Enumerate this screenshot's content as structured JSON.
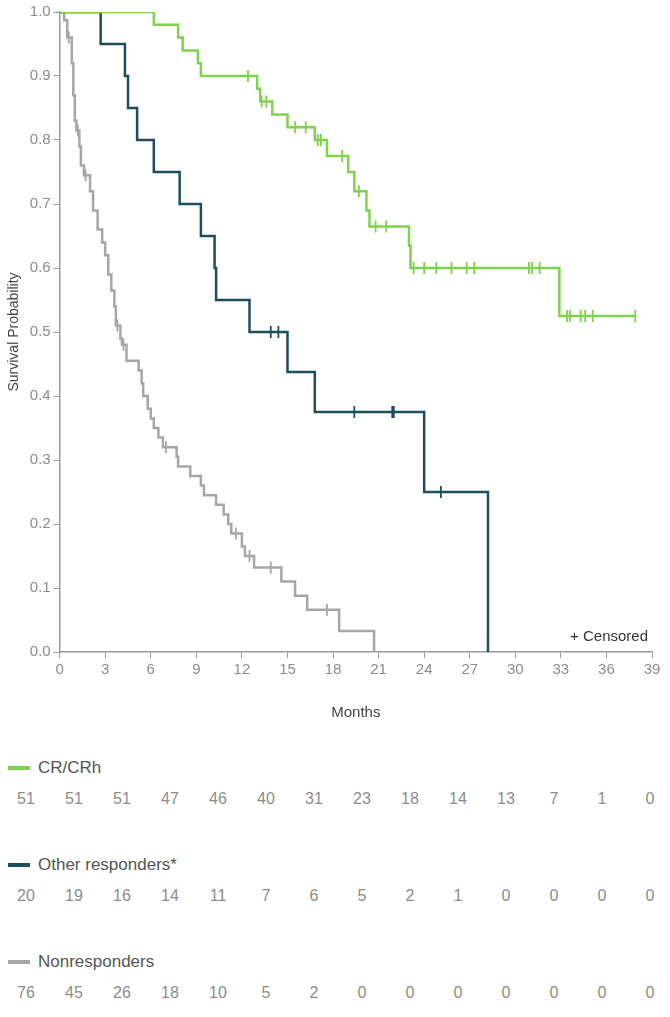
{
  "chart_data": {
    "type": "line",
    "line_style": "step",
    "x_label": "Months",
    "y_label": "Survival Probability",
    "annotation": "+ Censored",
    "xlim": [
      0,
      39
    ],
    "xticks": [
      0,
      3,
      6,
      9,
      12,
      15,
      18,
      21,
      24,
      27,
      30,
      33,
      36,
      39
    ],
    "ylim": [
      0,
      1
    ],
    "yticks": [
      {
        "value": 0,
        "label": "0.0"
      },
      0.1,
      0.2,
      0.3,
      0.4,
      0.5,
      0.6,
      0.7,
      0.8,
      0.9,
      {
        "value": 1,
        "label": "1.0"
      }
    ],
    "grid": false,
    "series": [
      {
        "name": "CR/CRh",
        "color": "#80d24d",
        "x": [
          0,
          6.2,
          7.8,
          8.1,
          9.1,
          9.3,
          13.0,
          13.2,
          14.0,
          15.0,
          16.8,
          17.6,
          19.0,
          19.4,
          20.2,
          20.4,
          23.0,
          23.1,
          32.9,
          37.9
        ],
        "y": [
          1,
          0.98,
          0.96,
          0.94,
          0.92,
          0.9,
          0.88,
          0.86,
          0.84,
          0.82,
          0.8,
          0.775,
          0.75,
          0.72,
          0.69,
          0.665,
          0.635,
          0.6,
          0.525,
          0.525
        ],
        "censored_x": [
          12.4,
          13.3,
          13.6,
          15.5,
          16.2,
          17.0,
          17.2,
          18.6,
          19.7,
          20.8,
          21.5,
          23.3,
          24.0,
          24.8,
          25.8,
          26.8,
          27.3,
          30.9,
          31.1,
          31.6,
          33.4,
          33.6,
          34.3,
          34.6,
          35.1,
          37.9
        ],
        "censored_y": [
          0.9,
          0.86,
          0.86,
          0.82,
          0.82,
          0.8,
          0.8,
          0.775,
          0.72,
          0.665,
          0.665,
          0.6,
          0.6,
          0.6,
          0.6,
          0.6,
          0.6,
          0.6,
          0.6,
          0.6,
          0.525,
          0.525,
          0.525,
          0.525,
          0.525,
          0.525
        ],
        "at_risk": [
          51,
          51,
          51,
          47,
          46,
          40,
          31,
          23,
          18,
          14,
          13,
          7,
          1,
          0
        ]
      },
      {
        "name": "Other responders*",
        "color": "#1d4e5b",
        "x": [
          0,
          2.7,
          4.3,
          4.5,
          5.1,
          6.2,
          7.9,
          9.3,
          10.2,
          10.3,
          12.5,
          15.0,
          16.8,
          24.0,
          28.2
        ],
        "y": [
          1,
          0.95,
          0.9,
          0.85,
          0.8,
          0.75,
          0.7,
          0.65,
          0.6,
          0.55,
          0.5,
          0.4375,
          0.375,
          0.25,
          0
        ],
        "censored_x": [
          13.9,
          14.4,
          19.4,
          21.9,
          22.0,
          25.1
        ],
        "censored_y": [
          0.5,
          0.5,
          0.375,
          0.375,
          0.375,
          0.25
        ],
        "at_risk": [
          20,
          19,
          16,
          14,
          11,
          7,
          6,
          5,
          2,
          1,
          0,
          0,
          0,
          0
        ]
      },
      {
        "name": "Nonresponders",
        "color": "#a6a6a6",
        "x": [
          0,
          0.3,
          0.5,
          0.8,
          0.9,
          1.0,
          1.1,
          1.3,
          1.4,
          1.6,
          2.0,
          2.2,
          2.5,
          2.8,
          3.0,
          3.2,
          3.4,
          3.6,
          3.7,
          4.0,
          4.1,
          4.4,
          5.2,
          5.4,
          5.5,
          5.8,
          6.0,
          6.2,
          6.5,
          6.8,
          7.7,
          7.8,
          8.6,
          9.3,
          9.5,
          10.3,
          10.8,
          11.1,
          11.3,
          12.0,
          12.2,
          12.8,
          14.6,
          15.5,
          16.3,
          18.4,
          20.7
        ],
        "y": [
          1,
          0.987,
          0.96,
          0.92,
          0.87,
          0.83,
          0.815,
          0.79,
          0.76,
          0.745,
          0.72,
          0.69,
          0.66,
          0.64,
          0.62,
          0.59,
          0.565,
          0.54,
          0.51,
          0.49,
          0.48,
          0.455,
          0.44,
          0.42,
          0.4,
          0.38,
          0.365,
          0.35,
          0.335,
          0.32,
          0.305,
          0.29,
          0.275,
          0.26,
          0.245,
          0.23,
          0.215,
          0.2,
          0.185,
          0.165,
          0.15,
          0.132,
          0.11,
          0.088,
          0.066,
          0.033,
          0
        ],
        "censored_x": [
          0.6,
          1.2,
          1.7,
          3.8,
          4.2,
          7.0,
          11.6,
          12.5,
          13.9,
          17.6
        ],
        "censored_y": [
          0.96,
          0.815,
          0.745,
          0.51,
          0.48,
          0.32,
          0.185,
          0.15,
          0.132,
          0.066
        ],
        "at_risk": [
          76,
          45,
          26,
          18,
          10,
          5,
          2,
          0,
          0,
          0,
          0,
          0,
          0,
          0
        ]
      }
    ]
  }
}
